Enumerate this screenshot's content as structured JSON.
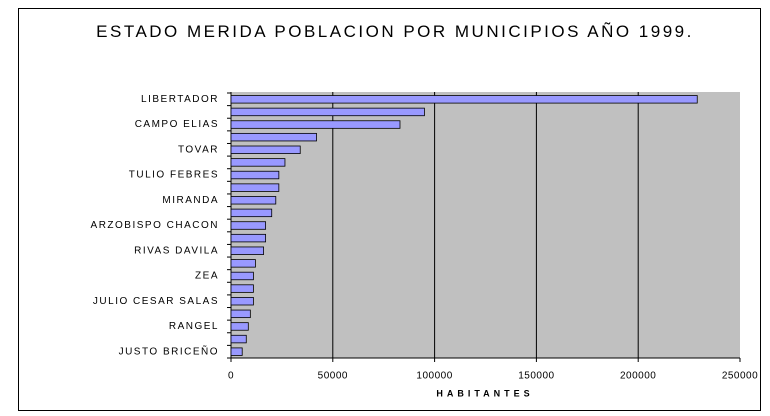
{
  "chart_data": {
    "type": "barh",
    "title": "ESTADO MERIDA POBLACION POR MUNICIPIOS AÑO 1999.",
    "xlabel": "HABITANTES",
    "categories": [
      "LIBERTADOR",
      null,
      "CAMPO ELIAS",
      null,
      "TOVAR",
      null,
      "TULIO FEBRES",
      null,
      "MIRANDA",
      null,
      "ARZOBISPO CHACON",
      null,
      "RIVAS DAVILA",
      null,
      "ZEA",
      null,
      "JULIO CESAR SALAS",
      null,
      "RANGEL",
      null,
      "JUSTO BRICEÑO"
    ],
    "values": [
      229000,
      95000,
      83000,
      42000,
      34000,
      26500,
      23500,
      23500,
      22000,
      20000,
      17000,
      17000,
      16000,
      12000,
      11000,
      11000,
      11000,
      9500,
      8500,
      7500,
      5500
    ],
    "color": "#9999ff",
    "xlim": [
      0,
      250000
    ],
    "xticks": [
      0,
      50000,
      100000,
      150000,
      200000,
      250000
    ],
    "grid": true
  }
}
